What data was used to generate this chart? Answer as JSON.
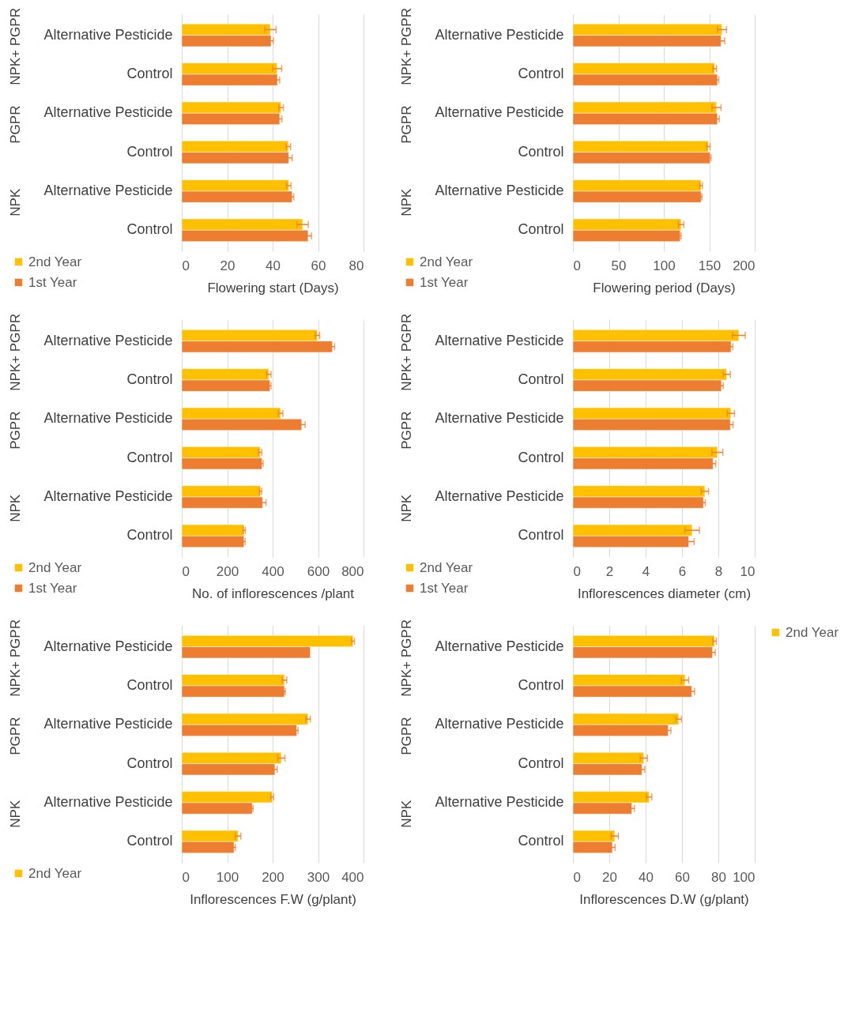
{
  "chart_data": [
    {
      "type": "bar",
      "orientation": "horizontal",
      "xlabel": "Flowering start (Days)",
      "categories": [
        "Alternative Pesticide",
        "Control",
        "Alternative Pesticide",
        "Control",
        "Alternative Pesticide",
        "Control"
      ],
      "annotations": [
        "NPK+ PGPR",
        "PGPR",
        "NPK"
      ],
      "xlim": [
        0,
        80
      ],
      "xticks": [
        0,
        20,
        40,
        60,
        80
      ],
      "grid": "x",
      "legend": "bottom left",
      "series": [
        {
          "name": "2nd Year",
          "color": "#ffc000",
          "values": [
            39.0,
            42.0,
            43.7,
            46.9,
            47.1,
            53.2
          ],
          "errors": [
            2.5,
            2,
            1,
            1,
            1,
            2.5
          ]
        },
        {
          "name": "1st Year",
          "color": "#ed7d31",
          "values": [
            39.3,
            42.1,
            43.1,
            47.1,
            48.6,
            55.6
          ],
          "errors": [
            1,
            1,
            1,
            1.5,
            0.7,
            1.5
          ]
        }
      ]
    },
    {
      "type": "bar",
      "orientation": "horizontal",
      "xlabel": "Flowering period (Days)",
      "categories": [
        "Alternative Pesticide",
        "Control",
        "Alternative Pesticide",
        "Control",
        "Alternative Pesticide",
        "Control"
      ],
      "annotations": [
        "NPK+ PGPR",
        "PGPR",
        "NPK"
      ],
      "xlim": [
        0,
        200
      ],
      "xticks": [
        0,
        50,
        100,
        150,
        200
      ],
      "grid": "x",
      "legend": "bottom left",
      "series": [
        {
          "name": "2nd Year",
          "color": "#ffc000",
          "values": [
            164,
            156,
            158,
            149,
            141,
            119
          ],
          "errors": [
            5,
            2,
            5,
            2,
            1.5,
            3
          ]
        },
        {
          "name": "1st Year",
          "color": "#ed7d31",
          "values": [
            163,
            159,
            159,
            151,
            141,
            118
          ],
          "errors": [
            4,
            1.5,
            2,
            1,
            1,
            1
          ]
        }
      ]
    },
    {
      "type": "bar",
      "orientation": "horizontal",
      "xlabel": "No. of inflorescences  /plant",
      "categories": [
        "Alternative Pesticide",
        "Control",
        "Alternative Pesticide",
        "Control",
        "Alternative Pesticide",
        "Control"
      ],
      "annotations": [
        "NPK+ PGPR",
        "PGPR",
        "NPK"
      ],
      "xlim": [
        0,
        800
      ],
      "xticks": [
        0,
        200,
        400,
        600,
        800
      ],
      "grid": "x",
      "legend": "bottom left",
      "series": [
        {
          "name": "2nd Year",
          "color": "#ffc000",
          "values": [
            597,
            383,
            435,
            345,
            347,
            275
          ],
          "errors": [
            10,
            10,
            10,
            7,
            5,
            5
          ]
        },
        {
          "name": "1st Year",
          "color": "#ed7d31",
          "values": [
            663,
            388,
            528,
            353,
            356,
            274
          ],
          "errors": [
            10,
            5,
            15,
            5,
            15,
            5
          ]
        }
      ]
    },
    {
      "type": "bar",
      "orientation": "horizontal",
      "xlabel": "Inflorescences  diameter (cm)",
      "categories": [
        "Alternative Pesticide",
        "Control",
        "Alternative Pesticide",
        "Control",
        "Alternative Pesticide",
        "Control"
      ],
      "annotations": [
        "NPK+ PGPR",
        "PGPR",
        "NPK"
      ],
      "xlim": [
        0,
        10
      ],
      "xticks": [
        0,
        2,
        4,
        6,
        8,
        10
      ],
      "grid": "x",
      "legend": "bottom left",
      "series": [
        {
          "name": "2nd Year",
          "color": "#ffc000",
          "values": [
            9.13,
            8.46,
            8.69,
            7.95,
            7.26,
            6.56
          ],
          "errors": [
            0.35,
            0.2,
            0.2,
            0.3,
            0.2,
            0.4
          ]
        },
        {
          "name": "1st Year",
          "color": "#ed7d31",
          "values": [
            8.7,
            8.17,
            8.66,
            7.71,
            7.18,
            6.37
          ],
          "errors": [
            0.1,
            0.1,
            0.15,
            0.15,
            0.1,
            0.3
          ]
        }
      ]
    },
    {
      "type": "bar",
      "orientation": "horizontal",
      "xlabel": "Inflorescences F.W (g/plant)",
      "categories": [
        "Alternative Pesticide",
        "Control",
        "Alternative Pesticide",
        "Control",
        "Alternative Pesticide",
        "Control"
      ],
      "annotations": [
        "NPK+ PGPR",
        "PGPR",
        "NPK"
      ],
      "xlim": [
        0,
        400
      ],
      "xticks": [
        0,
        100,
        200,
        300,
        400
      ],
      "grid": "x",
      "legend": "bottom left",
      "series": [
        {
          "name": "2nd Year",
          "color": "#ffc000",
          "values": [
            377,
            226,
            278,
            219,
            199,
            124
          ],
          "errors": [
            3,
            5,
            5,
            8,
            3,
            6
          ]
        },
        {
          "color": "#ed7d31",
          "values": [
            283,
            226,
            253,
            205,
            155,
            115
          ],
          "errors": [
            null,
            2,
            3,
            5,
            2,
            3
          ]
        }
      ]
    },
    {
      "type": "bar",
      "orientation": "horizontal",
      "xlabel": "Inflorescences  D.W (g/plant)",
      "categories": [
        "Alternative Pesticide",
        "Control",
        "Alternative Pesticide",
        "Control",
        "Alternative Pesticide",
        "Control"
      ],
      "annotations": [
        "NPK+ PGPR",
        "PGPR",
        "NPK"
      ],
      "xlim": [
        0,
        100
      ],
      "xticks": [
        0,
        20,
        40,
        60,
        80,
        100
      ],
      "grid": "x",
      "legend": "right",
      "series": [
        {
          "name": "2nd Year",
          "color": "#ffc000",
          "values": [
            77.9,
            61.7,
            58.2,
            39.0,
            41.9,
            23.0
          ],
          "errors": [
            1,
            2,
            1.5,
            2,
            1.5,
            2
          ]
        },
        {
          "color": "#ed7d31",
          "values": [
            76.8,
            65.4,
            52.4,
            38.0,
            32.4,
            21.7
          ],
          "errors": [
            1.5,
            1.5,
            1.5,
            1.5,
            1.5,
            1.5
          ]
        }
      ]
    }
  ]
}
